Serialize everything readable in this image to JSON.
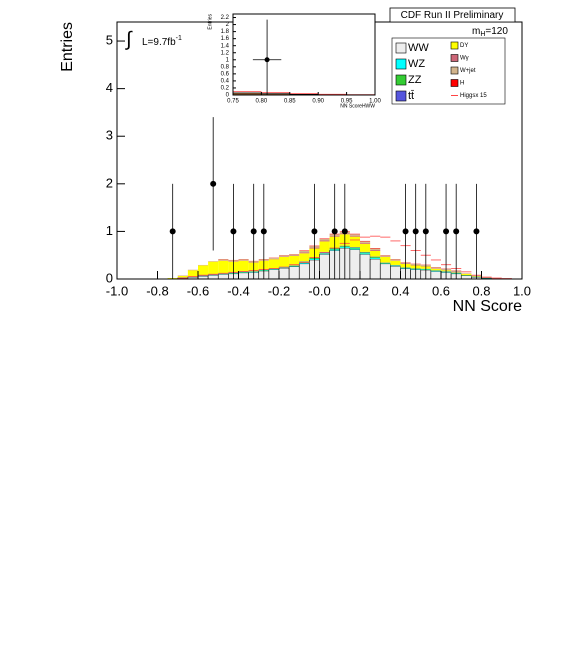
{
  "chart_data": [
    {
      "type": "histogram",
      "title": "CDF Run II Preliminary",
      "xlabel": "NN Score",
      "ylabel": "Entries",
      "mass_label": "m",
      "mass_sub": "H",
      "mass_value": "=120",
      "integral": "∫",
      "lumi_label": "L=9.7fb",
      "lumi_sup": "-1",
      "xlim": [
        -1,
        1
      ],
      "ylim": [
        0,
        5.4
      ],
      "xticks": [
        {
          "value": -1,
          "label": "-1.0"
        },
        {
          "value": -0.8,
          "label": "-0.8"
        },
        {
          "value": -0.6,
          "label": "-0.6"
        },
        {
          "value": -0.4,
          "label": "-0.4"
        },
        {
          "value": -0.2,
          "label": "-0.2"
        },
        {
          "value": 0,
          "label": "-0.0"
        },
        {
          "value": 0.2,
          "label": "0.2"
        },
        {
          "value": 0.4,
          "label": "0.4"
        },
        {
          "value": 0.6,
          "label": "0.6"
        },
        {
          "value": 0.8,
          "label": "0.8"
        },
        {
          "value": 1,
          "label": "1.0"
        }
      ],
      "yticks": [
        0,
        1,
        2,
        3,
        4,
        5
      ],
      "bins": [
        -1,
        -0.95,
        -0.9,
        -0.85,
        -0.8,
        -0.75,
        -0.7,
        -0.65,
        -0.6,
        -0.55,
        -0.5,
        -0.45,
        -0.4,
        -0.35,
        -0.3,
        -0.25,
        -0.2,
        -0.15,
        -0.1,
        -0.05,
        0,
        0.05,
        0.1,
        0.15,
        0.2,
        0.25,
        0.3,
        0.35,
        0.4,
        0.45,
        0.5,
        0.55,
        0.6,
        0.65,
        0.7,
        0.75,
        0.8,
        0.85,
        0.9,
        0.95,
        1
      ],
      "series": [
        {
          "name": "WW",
          "color": "#eeeeee",
          "values": [
            0,
            0,
            0,
            0,
            0,
            0.005,
            0.02,
            0.04,
            0.06,
            0.08,
            0.1,
            0.11,
            0.13,
            0.14,
            0.17,
            0.2,
            0.23,
            0.26,
            0.32,
            0.4,
            0.52,
            0.6,
            0.65,
            0.62,
            0.52,
            0.42,
            0.32,
            0.27,
            0.22,
            0.2,
            0.19,
            0.16,
            0.14,
            0.11,
            0.07,
            0.04,
            0.015,
            0.005,
            0,
            0
          ]
        },
        {
          "name": "WZ",
          "color": "#00ffff",
          "values": [
            0,
            0,
            0,
            0,
            0,
            0,
            0.005,
            0.005,
            0.005,
            0.005,
            0.01,
            0.01,
            0.01,
            0.01,
            0.01,
            0.01,
            0.01,
            0.01,
            0.02,
            0.02,
            0.02,
            0.02,
            0.02,
            0.02,
            0.02,
            0.02,
            0.01,
            0.01,
            0.01,
            0.01,
            0.01,
            0.01,
            0.01,
            0.01,
            0.005,
            0.005,
            0.005,
            0,
            0,
            0
          ]
        },
        {
          "name": "ZZ",
          "color": "#33cc33",
          "values": [
            0,
            0,
            0,
            0,
            0,
            0,
            0.005,
            0.005,
            0.005,
            0.005,
            0.01,
            0.01,
            0.01,
            0.01,
            0.01,
            0.01,
            0.01,
            0.01,
            0.02,
            0.02,
            0.02,
            0.02,
            0.02,
            0.02,
            0.02,
            0.02,
            0.01,
            0.01,
            0.01,
            0.01,
            0.01,
            0.01,
            0.01,
            0.01,
            0.005,
            0.005,
            0.005,
            0,
            0,
            0
          ]
        },
        {
          "name": "tt̄",
          "color": "#5555dd",
          "values": [
            0,
            0,
            0,
            0,
            0,
            0,
            0.005,
            0.005,
            0.005,
            0.005,
            0.005,
            0.005,
            0.005,
            0.005,
            0.005,
            0.005,
            0.005,
            0.005,
            0.01,
            0.01,
            0.01,
            0.01,
            0.01,
            0.01,
            0.01,
            0.01,
            0.005,
            0.005,
            0.005,
            0.005,
            0.005,
            0.005,
            0.005,
            0.005,
            0,
            0,
            0,
            0,
            0,
            0
          ]
        },
        {
          "name": "DY",
          "color": "#ffff00",
          "values": [
            0,
            0,
            0,
            0,
            0,
            0.015,
            0.03,
            0.13,
            0.21,
            0.27,
            0.26,
            0.23,
            0.23,
            0.18,
            0.19,
            0.19,
            0.21,
            0.2,
            0.17,
            0.19,
            0.22,
            0.24,
            0.24,
            0.22,
            0.17,
            0.12,
            0.12,
            0.09,
            0.07,
            0.06,
            0.05,
            0.03,
            0.02,
            0.01,
            0.03,
            0.01,
            0,
            0.005,
            0,
            0
          ]
        },
        {
          "name": "Wγ",
          "color": "#cc6677",
          "values": [
            0,
            0,
            0,
            0,
            0,
            0,
            0.005,
            0.005,
            0.005,
            0.005,
            0.01,
            0.01,
            0.01,
            0.01,
            0.01,
            0.01,
            0.01,
            0.01,
            0.02,
            0.02,
            0.02,
            0.02,
            0.02,
            0.02,
            0.02,
            0.02,
            0.01,
            0.01,
            0.01,
            0.01,
            0.01,
            0.01,
            0.01,
            0.01,
            0.005,
            0.005,
            0.005,
            0,
            0,
            0
          ]
        },
        {
          "name": "W+jet",
          "color": "#d2b48c",
          "values": [
            0,
            0,
            0,
            0,
            0,
            0,
            0.005,
            0.005,
            0.005,
            0.005,
            0.02,
            0.02,
            0.02,
            0.02,
            0.02,
            0.02,
            0.02,
            0.02,
            0.03,
            0.03,
            0.03,
            0.03,
            0.03,
            0.03,
            0.03,
            0.03,
            0.02,
            0.02,
            0.02,
            0.02,
            0.02,
            0.02,
            0.02,
            0.02,
            0.005,
            0.005,
            0.005,
            0,
            0,
            0
          ]
        },
        {
          "name": "H",
          "color": "#ff0000",
          "values": [
            0,
            0,
            0,
            0,
            0,
            0,
            0,
            0,
            0,
            0,
            0.005,
            0.005,
            0.005,
            0.005,
            0.005,
            0.005,
            0.005,
            0.005,
            0.01,
            0.01,
            0.01,
            0.01,
            0.01,
            0.01,
            0.01,
            0.01,
            0.005,
            0.005,
            0.005,
            0.005,
            0.005,
            0.005,
            0.005,
            0.005,
            0,
            0,
            0,
            0,
            0,
            0
          ]
        }
      ],
      "signal": {
        "name": "Higgsx 15",
        "color": "#ff4444",
        "values": [
          0,
          0,
          0,
          0,
          0,
          0,
          0.02,
          0.05,
          0.08,
          0.1,
          0.12,
          0.14,
          0.16,
          0.18,
          0.2,
          0.22,
          0.25,
          0.3,
          0.35,
          0.45,
          0.55,
          0.65,
          0.75,
          0.82,
          0.88,
          0.9,
          0.88,
          0.8,
          0.7,
          0.6,
          0.5,
          0.4,
          0.3,
          0.22,
          0.15,
          0.08,
          0.04,
          0.02,
          0.01,
          0
        ]
      },
      "points": {
        "x": [
          -0.725,
          -0.525,
          -0.425,
          -0.325,
          -0.275,
          -0.025,
          0.075,
          0.125,
          0.425,
          0.475,
          0.525,
          0.625,
          0.675,
          0.775
        ],
        "y": [
          1,
          2,
          1,
          1,
          1,
          1,
          1,
          1,
          1,
          1,
          1,
          1,
          1,
          1
        ],
        "yerr_low": [
          1,
          1.4,
          1,
          1,
          1,
          1,
          1,
          1,
          1,
          1,
          1,
          1,
          1,
          1
        ],
        "yerr_high": [
          1,
          1.4,
          1,
          1,
          1,
          1,
          1,
          1,
          1,
          1,
          1,
          1,
          1,
          1
        ]
      }
    },
    {
      "type": "histogram",
      "xlabel": "NN ScoreHWW",
      "ylabel": "Entries",
      "xlim": [
        0.75,
        1
      ],
      "ylim": [
        0,
        2.3
      ],
      "xticks": [
        {
          "value": 0.75,
          "label": "0.75"
        },
        {
          "value": 0.8,
          "label": "0.80"
        },
        {
          "value": 0.85,
          "label": "0.85"
        },
        {
          "value": 0.9,
          "label": "0.90"
        },
        {
          "value": 0.95,
          "label": "0.95"
        },
        {
          "value": 1,
          "label": "1.00"
        }
      ],
      "yticks": [
        0,
        0.2,
        0.4,
        0.6,
        0.8,
        1,
        1.2,
        1.4,
        1.6,
        1.8,
        2,
        2.2
      ],
      "bins": [
        0.75,
        0.8,
        0.85,
        0.9,
        0.95,
        1
      ],
      "values": [
        0.06,
        0.04,
        0.02,
        0.01,
        0.005
      ],
      "color": "#8b5a2b",
      "signal_values": [
        0.1,
        0.07,
        0.04,
        0.02,
        0.01
      ],
      "signal_color": "#ff4444",
      "points": {
        "x": [
          0.81
        ],
        "xerr": [
          0.025
        ],
        "y": [
          1
        ],
        "yerr_low": [
          1
        ],
        "yerr_high": [
          1.14
        ]
      }
    }
  ]
}
